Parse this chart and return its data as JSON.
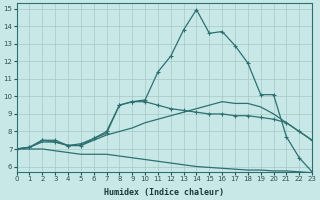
{
  "xlabel": "Humidex (Indice chaleur)",
  "bg_color": "#c8e8e8",
  "line_color": "#2d7070",
  "grid_color": "#a8c8c8",
  "xlim": [
    0,
    23
  ],
  "ylim": [
    5.7,
    15.3
  ],
  "xticks": [
    0,
    1,
    2,
    3,
    4,
    5,
    6,
    7,
    8,
    9,
    10,
    11,
    12,
    13,
    14,
    15,
    16,
    17,
    18,
    19,
    20,
    21,
    22,
    23
  ],
  "yticks": [
    6,
    7,
    8,
    9,
    10,
    11,
    12,
    13,
    14,
    15
  ],
  "line1_x": [
    0,
    1,
    2,
    3,
    4,
    5,
    6,
    7,
    8,
    9,
    10,
    11,
    12,
    13,
    14,
    15,
    16,
    17,
    18,
    19,
    20,
    21,
    22,
    23
  ],
  "line1_y": [
    7.0,
    7.1,
    7.5,
    7.5,
    7.2,
    7.2,
    7.6,
    8.0,
    9.5,
    9.7,
    9.8,
    11.4,
    12.3,
    13.8,
    14.95,
    13.6,
    13.7,
    12.9,
    11.9,
    10.1,
    10.1,
    7.7,
    6.5,
    5.7
  ],
  "line2_x": [
    0,
    1,
    2,
    3,
    4,
    5,
    6,
    7,
    8,
    9,
    10,
    11,
    12,
    13,
    14,
    15,
    16,
    17,
    18,
    19,
    20,
    21,
    22,
    23
  ],
  "line2_y": [
    7.0,
    7.1,
    7.5,
    7.4,
    7.2,
    7.3,
    7.6,
    7.9,
    9.5,
    9.7,
    9.7,
    9.5,
    9.3,
    9.2,
    9.1,
    9.0,
    9.0,
    8.9,
    8.9,
    8.8,
    8.7,
    8.5,
    8.0,
    7.5
  ],
  "line3_x": [
    0,
    1,
    2,
    3,
    4,
    5,
    6,
    7,
    8,
    9,
    10,
    11,
    12,
    13,
    14,
    15,
    16,
    17,
    18,
    19,
    20,
    21,
    22,
    23
  ],
  "line3_y": [
    7.0,
    7.1,
    7.4,
    7.4,
    7.2,
    7.2,
    7.5,
    7.8,
    8.0,
    8.2,
    8.5,
    8.7,
    8.9,
    9.1,
    9.3,
    9.5,
    9.7,
    9.6,
    9.6,
    9.4,
    9.0,
    8.5,
    8.0,
    7.5
  ],
  "line4_x": [
    0,
    1,
    2,
    3,
    4,
    5,
    6,
    7,
    8,
    9,
    10,
    11,
    12,
    13,
    14,
    15,
    16,
    17,
    18,
    19,
    20,
    21,
    22,
    23
  ],
  "line4_y": [
    7.0,
    7.0,
    7.0,
    6.9,
    6.8,
    6.7,
    6.7,
    6.7,
    6.6,
    6.5,
    6.4,
    6.3,
    6.2,
    6.1,
    6.0,
    5.95,
    5.9,
    5.85,
    5.8,
    5.8,
    5.75,
    5.75,
    5.7,
    5.65
  ]
}
